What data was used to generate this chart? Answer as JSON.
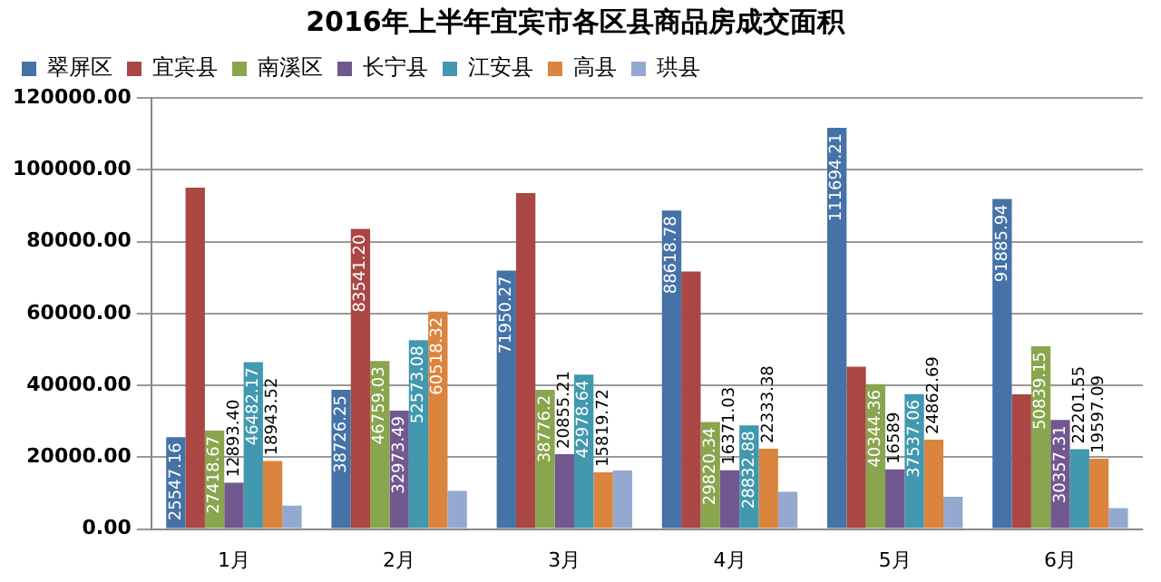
{
  "chart_data": {
    "type": "bar",
    "title": "2016年上半年宜宾市各区县商品房成交面积",
    "categories": [
      "1月",
      "2月",
      "3月",
      "4月",
      "5月",
      "6月"
    ],
    "ylim": [
      0,
      120000
    ],
    "yticks": [
      {
        "value": 0,
        "label": "0.00"
      },
      {
        "value": 20000,
        "label": "20000.00"
      },
      {
        "value": 40000,
        "label": "40000.00"
      },
      {
        "value": 60000,
        "label": "60000.00"
      },
      {
        "value": 80000,
        "label": "80000.00"
      },
      {
        "value": 100000,
        "label": "100000.00"
      },
      {
        "value": 120000,
        "label": "120000.00"
      }
    ],
    "grid": "y",
    "legend": "top",
    "series": [
      {
        "name": "翠屏区",
        "color": "#4572a7",
        "values": [
          25547.16,
          38726.25,
          71950.27,
          88618.78,
          111694.21,
          91885.94
        ],
        "value_labels": [
          "25547.16",
          "38726.25",
          "71950.27",
          "88618.78",
          "111694.21",
          "91885.94"
        ]
      },
      {
        "name": "宜宾县",
        "color": "#aa4643",
        "values": [
          95000,
          83541.2,
          93500,
          71700,
          45200,
          37500
        ],
        "value_labels": [
          null,
          "83541.20",
          null,
          null,
          null,
          null
        ]
      },
      {
        "name": "南溪区",
        "color": "#89a54e",
        "values": [
          27418.67,
          46759.03,
          38776.2,
          29820.34,
          40344.36,
          50839.15
        ],
        "value_labels": [
          "27418.67",
          "46759.03",
          "38776.2",
          "29820.34",
          "40344.36",
          "50839.15"
        ]
      },
      {
        "name": "长宁县",
        "color": "#71588f",
        "values": [
          12893.4,
          32973.49,
          20855.21,
          16371.03,
          16589,
          30357.31
        ],
        "value_labels": [
          "12893.40",
          "32973.49",
          "20855.21",
          "16371.03",
          "16589",
          "30357.31"
        ]
      },
      {
        "name": "江安县",
        "color": "#4198af",
        "values": [
          46482.17,
          52573.08,
          42978.64,
          28832.88,
          37537.06,
          22201.55
        ],
        "value_labels": [
          "46482.17",
          "52573.08",
          "42978.64",
          "28832.88",
          "37537.06",
          "22201.55"
        ]
      },
      {
        "name": "高县",
        "color": "#db843d",
        "values": [
          18943.52,
          60518.32,
          15819.72,
          22333.38,
          24862.69,
          19597.09
        ],
        "value_labels": [
          "18943.52",
          "60518.32",
          "15819.72",
          "22333.38",
          "24862.69",
          "19597.09"
        ]
      },
      {
        "name": "珙县",
        "color": "#93a9cf",
        "values": [
          6500,
          10600,
          16300,
          10400,
          9000,
          5800
        ],
        "value_labels": [
          null,
          null,
          null,
          null,
          null,
          null
        ]
      }
    ]
  }
}
